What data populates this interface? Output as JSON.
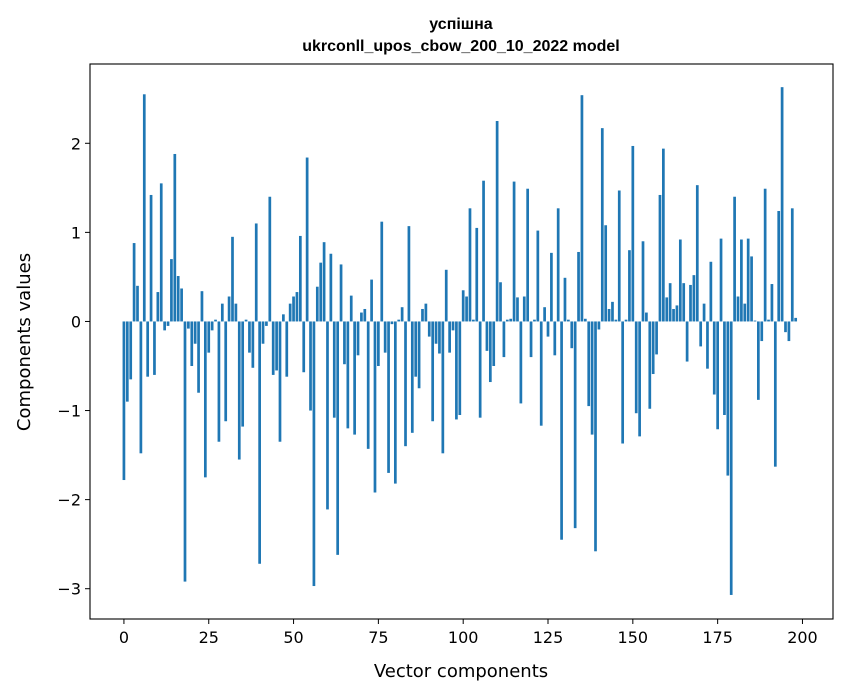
{
  "chart_data": {
    "type": "bar",
    "title_line1": "успішна",
    "title_line2": "ukrconll_upos_cbow_200_10_2022 model",
    "xlabel": "Vector components",
    "ylabel": "Components values",
    "xlim": [
      -10,
      209
    ],
    "ylim": [
      -3.34,
      2.89
    ],
    "xticks": [
      0,
      25,
      50,
      75,
      100,
      125,
      150,
      175,
      200
    ],
    "xtick_labels": [
      "0",
      "25",
      "50",
      "75",
      "100",
      "125",
      "150",
      "175",
      "200"
    ],
    "yticks": [
      -3,
      -2,
      -1,
      0,
      1,
      2
    ],
    "ytick_labels": [
      "−3",
      "−2",
      "−1",
      "0",
      "1",
      "2"
    ],
    "bar_color": "#1f77b4",
    "grid": false,
    "values": [
      -1.78,
      -0.9,
      -0.65,
      0.88,
      0.4,
      -1.48,
      2.55,
      -0.62,
      1.42,
      -0.6,
      0.33,
      1.55,
      -0.1,
      -0.05,
      0.7,
      1.88,
      0.51,
      0.37,
      -2.92,
      -0.08,
      -0.5,
      -0.25,
      -0.8,
      0.34,
      -1.75,
      -0.35,
      -0.1,
      0.02,
      -1.35,
      0.2,
      -1.12,
      0.28,
      0.95,
      0.2,
      -1.55,
      -1.18,
      0.02,
      -0.35,
      -0.52,
      1.1,
      -2.72,
      -0.25,
      -0.05,
      1.4,
      -0.6,
      -0.55,
      -1.35,
      0.08,
      -0.62,
      0.2,
      0.28,
      0.33,
      0.96,
      -0.57,
      1.84,
      -1.0,
      -2.97,
      0.39,
      0.66,
      0.89,
      -2.11,
      0.76,
      -1.08,
      -2.62,
      0.64,
      -0.48,
      -1.2,
      0.29,
      -1.27,
      -0.38,
      0.1,
      0.14,
      -1.43,
      0.47,
      -1.92,
      -0.5,
      1.12,
      -0.35,
      -1.7,
      -0.03,
      -1.82,
      0.02,
      0.16,
      -1.4,
      1.07,
      -1.25,
      -0.62,
      -0.75,
      0.14,
      0.2,
      -0.17,
      -1.12,
      -0.25,
      -0.36,
      -1.48,
      0.58,
      -0.35,
      -0.1,
      -1.1,
      -1.05,
      0.35,
      0.28,
      1.27,
      0.02,
      1.05,
      -1.08,
      1.58,
      -0.33,
      -0.68,
      -0.5,
      2.25,
      0.44,
      -0.4,
      0.02,
      0.03,
      1.57,
      0.27,
      -0.92,
      0.28,
      1.49,
      -0.4,
      0.02,
      1.02,
      -1.17,
      0.16,
      -0.17,
      0.77,
      -0.38,
      1.27,
      -2.45,
      0.49,
      0.02,
      -0.3,
      -2.32,
      0.78,
      2.54,
      0.03,
      -0.95,
      -1.27,
      -2.58,
      -0.09,
      2.17,
      1.08,
      0.14,
      0.22,
      0.02,
      1.47,
      -1.37,
      0.02,
      0.8,
      1.97,
      -1.03,
      -1.29,
      0.9,
      0.1,
      -0.98,
      -0.59,
      -0.37,
      1.42,
      1.94,
      0.27,
      0.43,
      0.14,
      0.18,
      0.92,
      0.43,
      -0.45,
      0.41,
      0.52,
      1.53,
      -0.28,
      0.2,
      -0.53,
      0.67,
      -0.82,
      -1.21,
      0.93,
      -1.05,
      -1.73,
      -3.07,
      1.4,
      0.28,
      0.92,
      0.2,
      0.93,
      0.73,
      0.01,
      -0.88,
      -0.22,
      1.49,
      0.02,
      0.42,
      -1.63,
      1.24,
      2.63,
      -0.12,
      -0.22,
      1.27,
      0.04
    ]
  }
}
